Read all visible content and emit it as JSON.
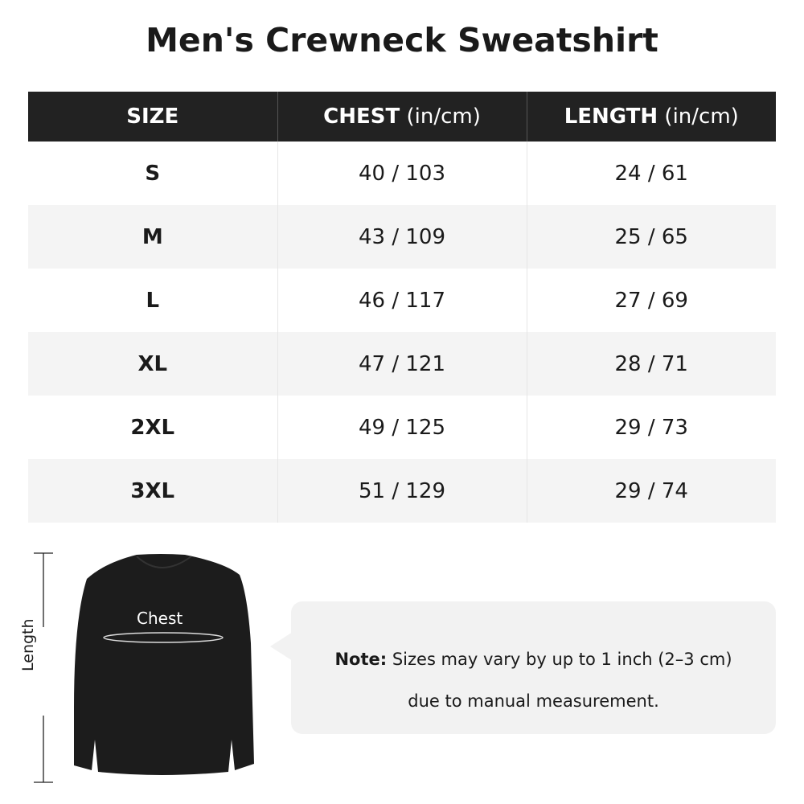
{
  "title": "Men's Crewneck Sweatshirt",
  "table": {
    "headers": [
      {
        "bold": "SIZE",
        "unit": ""
      },
      {
        "bold": "CHEST",
        "unit": " (in/cm)"
      },
      {
        "bold": "LENGTH",
        "unit": " (in/cm)"
      }
    ],
    "rows": [
      {
        "size": "S",
        "chest": "40 / 103",
        "length": "24 / 61"
      },
      {
        "size": "M",
        "chest": "43 / 109",
        "length": "25 / 65"
      },
      {
        "size": "L",
        "chest": "46 / 117",
        "length": "27 / 69"
      },
      {
        "size": "XL",
        "chest": "47 / 121",
        "length": "28 / 71"
      },
      {
        "size": "2XL",
        "chest": "49 / 125",
        "length": "29 / 73"
      },
      {
        "size": "3XL",
        "chest": "51 / 129",
        "length": "29 / 74"
      }
    ]
  },
  "figure": {
    "chest_label": "Chest",
    "length_label": "Length"
  },
  "note": {
    "bold": "Note:",
    "line1": " Sizes may vary by up to 1 inch (2–3 cm)",
    "line2": "due to manual measurement."
  }
}
